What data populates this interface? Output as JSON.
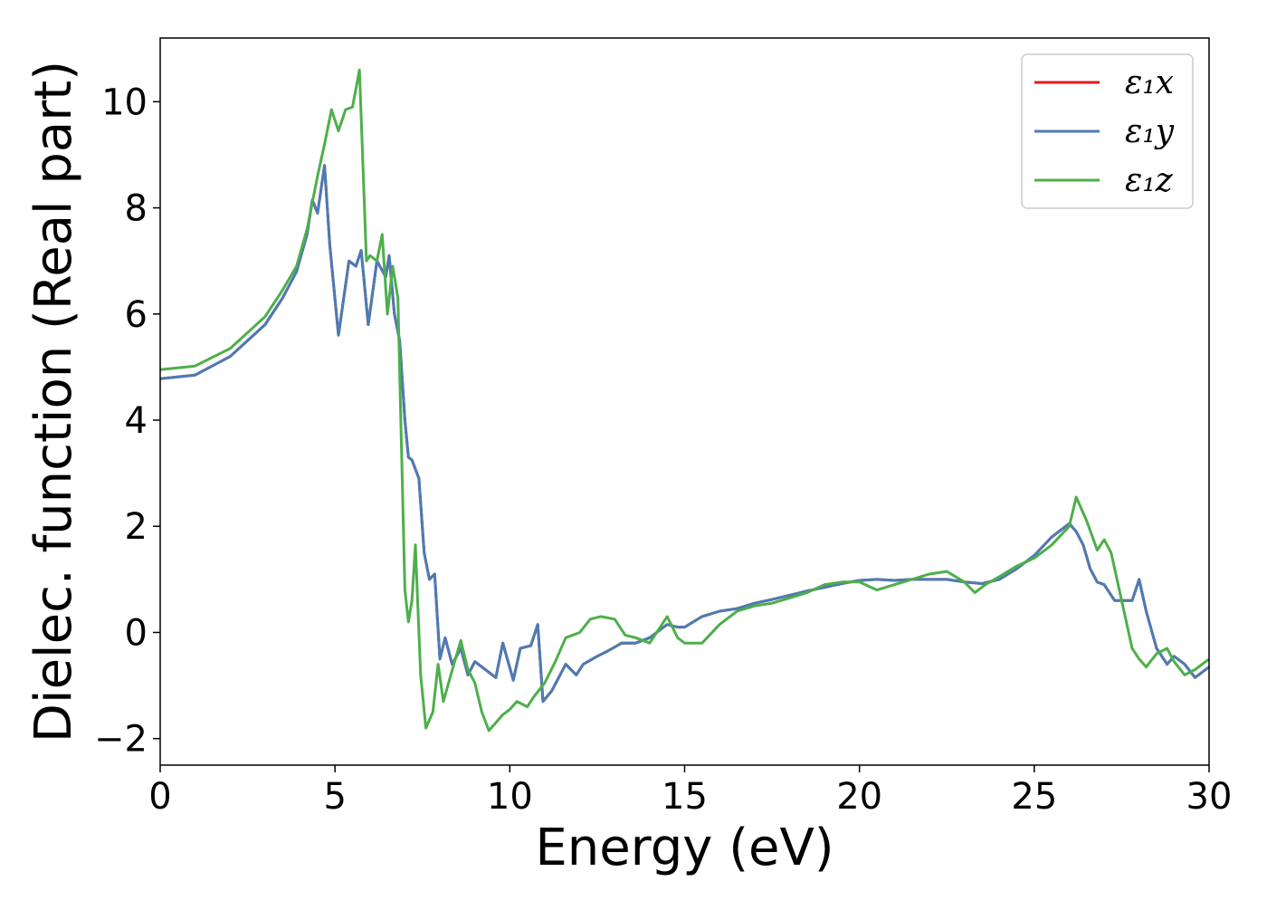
{
  "chart_data": {
    "type": "line",
    "title": "",
    "xlabel": "Energy (eV)",
    "ylabel": "Dielec. function (Real part)",
    "xlim": [
      0,
      30
    ],
    "ylim": [
      -2.5,
      11.2
    ],
    "xticks": [
      "0",
      "5",
      "10",
      "15",
      "20",
      "25",
      "30"
    ],
    "yticks": [
      "−2",
      "0",
      "2",
      "4",
      "6",
      "8",
      "10"
    ],
    "grid": false,
    "legend_position": "top-right",
    "series": [
      {
        "name": "ε₁x",
        "color": "#e41a1c",
        "x": [
          0,
          1,
          2,
          3,
          3.5,
          3.9,
          4.2,
          4.35,
          4.5,
          4.7,
          4.85,
          5.1,
          5.4,
          5.6,
          5.75,
          5.95,
          6.2,
          6.45,
          6.55,
          6.7,
          6.85,
          7.0,
          7.1,
          7.2,
          7.4,
          7.55,
          7.7,
          7.85,
          8.0,
          8.15,
          8.35,
          8.6,
          8.8,
          9.0,
          9.3,
          9.6,
          9.8,
          10.1,
          10.3,
          10.6,
          10.8,
          10.95,
          11.2,
          11.6,
          11.9,
          12.1,
          12.5,
          12.8,
          13.2,
          13.6,
          14.0,
          14.5,
          14.8,
          15.0,
          15.5,
          16.0,
          16.5,
          17.0,
          17.5,
          18.0,
          18.5,
          19.0,
          19.5,
          20.0,
          20.5,
          21.0,
          21.5,
          22.0,
          22.5,
          23.0,
          23.5,
          24.0,
          24.5,
          25.0,
          25.5,
          26.0,
          26.2,
          26.4,
          26.6,
          26.8,
          27.0,
          27.3,
          27.5,
          27.8,
          28.0,
          28.2,
          28.5,
          28.8,
          29.0,
          29.3,
          29.6,
          30.0
        ],
        "values": [
          4.78,
          4.85,
          5.2,
          5.8,
          6.3,
          6.8,
          7.5,
          8.15,
          7.9,
          8.8,
          7.3,
          5.6,
          7.0,
          6.9,
          7.2,
          5.8,
          7.0,
          6.7,
          7.1,
          6.0,
          5.5,
          4.0,
          3.3,
          3.25,
          2.9,
          1.5,
          1.0,
          1.1,
          -0.5,
          -0.1,
          -0.6,
          -0.3,
          -0.8,
          -0.55,
          -0.7,
          -0.85,
          -0.2,
          -0.9,
          -0.3,
          -0.25,
          0.15,
          -1.3,
          -1.1,
          -0.6,
          -0.8,
          -0.6,
          -0.45,
          -0.35,
          -0.2,
          -0.2,
          -0.1,
          0.15,
          0.1,
          0.1,
          0.3,
          0.4,
          0.45,
          0.55,
          0.62,
          0.7,
          0.78,
          0.85,
          0.92,
          0.98,
          1.0,
          0.98,
          1.0,
          1.0,
          1.0,
          0.95,
          0.92,
          1.0,
          1.2,
          1.45,
          1.8,
          2.05,
          1.9,
          1.65,
          1.2,
          0.95,
          0.9,
          0.6,
          0.6,
          0.6,
          1.0,
          0.4,
          -0.3,
          -0.6,
          -0.45,
          -0.6,
          -0.85,
          -0.65
        ]
      },
      {
        "name": "ε₁y",
        "color": "#4a7cb5",
        "x": [
          0,
          1,
          2,
          3,
          3.5,
          3.9,
          4.2,
          4.35,
          4.5,
          4.7,
          4.85,
          5.1,
          5.4,
          5.6,
          5.75,
          5.95,
          6.2,
          6.45,
          6.55,
          6.7,
          6.85,
          7.0,
          7.1,
          7.2,
          7.4,
          7.55,
          7.7,
          7.85,
          8.0,
          8.15,
          8.35,
          8.6,
          8.8,
          9.0,
          9.3,
          9.6,
          9.8,
          10.1,
          10.3,
          10.6,
          10.8,
          10.95,
          11.2,
          11.6,
          11.9,
          12.1,
          12.5,
          12.8,
          13.2,
          13.6,
          14.0,
          14.5,
          14.8,
          15.0,
          15.5,
          16.0,
          16.5,
          17.0,
          17.5,
          18.0,
          18.5,
          19.0,
          19.5,
          20.0,
          20.5,
          21.0,
          21.5,
          22.0,
          22.5,
          23.0,
          23.5,
          24.0,
          24.5,
          25.0,
          25.5,
          26.0,
          26.2,
          26.4,
          26.6,
          26.8,
          27.0,
          27.3,
          27.5,
          27.8,
          28.0,
          28.2,
          28.5,
          28.8,
          29.0,
          29.3,
          29.6,
          30.0
        ],
        "values": [
          4.78,
          4.85,
          5.2,
          5.8,
          6.3,
          6.8,
          7.5,
          8.15,
          7.9,
          8.8,
          7.3,
          5.6,
          7.0,
          6.9,
          7.2,
          5.8,
          7.0,
          6.7,
          7.1,
          6.0,
          5.5,
          4.0,
          3.3,
          3.25,
          2.9,
          1.5,
          1.0,
          1.1,
          -0.5,
          -0.1,
          -0.6,
          -0.3,
          -0.8,
          -0.55,
          -0.7,
          -0.85,
          -0.2,
          -0.9,
          -0.3,
          -0.25,
          0.15,
          -1.3,
          -1.1,
          -0.6,
          -0.8,
          -0.6,
          -0.45,
          -0.35,
          -0.2,
          -0.2,
          -0.1,
          0.15,
          0.1,
          0.1,
          0.3,
          0.4,
          0.45,
          0.55,
          0.62,
          0.7,
          0.78,
          0.85,
          0.92,
          0.98,
          1.0,
          0.98,
          1.0,
          1.0,
          1.0,
          0.95,
          0.92,
          1.0,
          1.2,
          1.45,
          1.8,
          2.05,
          1.9,
          1.65,
          1.2,
          0.95,
          0.9,
          0.6,
          0.6,
          0.6,
          1.0,
          0.4,
          -0.3,
          -0.6,
          -0.45,
          -0.6,
          -0.85,
          -0.65
        ]
      },
      {
        "name": "ε₁z",
        "color": "#4daf4a",
        "x": [
          0,
          1,
          2,
          3,
          3.5,
          3.9,
          4.2,
          4.5,
          4.7,
          4.9,
          5.1,
          5.3,
          5.5,
          5.7,
          5.9,
          6.0,
          6.2,
          6.35,
          6.5,
          6.65,
          6.8,
          6.9,
          7.0,
          7.1,
          7.2,
          7.3,
          7.45,
          7.6,
          7.8,
          7.95,
          8.1,
          8.4,
          8.6,
          8.8,
          9.0,
          9.2,
          9.4,
          9.6,
          9.8,
          10.0,
          10.2,
          10.5,
          10.7,
          11.0,
          11.3,
          11.6,
          12.0,
          12.3,
          12.6,
          13.0,
          13.3,
          13.6,
          14.0,
          14.5,
          14.8,
          15.0,
          15.5,
          16.0,
          16.5,
          17.0,
          17.5,
          18.0,
          18.5,
          19.0,
          19.5,
          20.0,
          20.5,
          21.0,
          21.5,
          22.0,
          22.5,
          23.0,
          23.3,
          23.6,
          24.0,
          24.5,
          25.0,
          25.5,
          26.0,
          26.2,
          26.5,
          26.8,
          27.0,
          27.2,
          27.5,
          27.8,
          28.0,
          28.2,
          28.5,
          28.8,
          29.0,
          29.3,
          29.6,
          30.0
        ],
        "values": [
          4.95,
          5.02,
          5.35,
          5.95,
          6.45,
          6.9,
          7.6,
          8.6,
          9.2,
          9.85,
          9.45,
          9.85,
          9.9,
          10.6,
          7.0,
          7.1,
          7.0,
          7.5,
          6.0,
          6.9,
          6.3,
          3.5,
          0.8,
          0.2,
          0.6,
          1.65,
          -0.8,
          -1.8,
          -1.5,
          -0.6,
          -1.3,
          -0.6,
          -0.15,
          -0.7,
          -0.95,
          -1.5,
          -1.85,
          -1.7,
          -1.55,
          -1.45,
          -1.3,
          -1.4,
          -1.2,
          -0.95,
          -0.55,
          -0.1,
          0.0,
          0.25,
          0.3,
          0.25,
          -0.05,
          -0.1,
          -0.2,
          0.3,
          -0.1,
          -0.2,
          -0.2,
          0.15,
          0.4,
          0.5,
          0.55,
          0.65,
          0.75,
          0.9,
          0.95,
          0.95,
          0.8,
          0.9,
          1.0,
          1.1,
          1.15,
          0.95,
          0.75,
          0.9,
          1.05,
          1.25,
          1.4,
          1.65,
          2.0,
          2.55,
          2.1,
          1.55,
          1.75,
          1.5,
          0.6,
          -0.3,
          -0.5,
          -0.65,
          -0.4,
          -0.3,
          -0.55,
          -0.8,
          -0.7,
          -0.5
        ]
      }
    ]
  }
}
